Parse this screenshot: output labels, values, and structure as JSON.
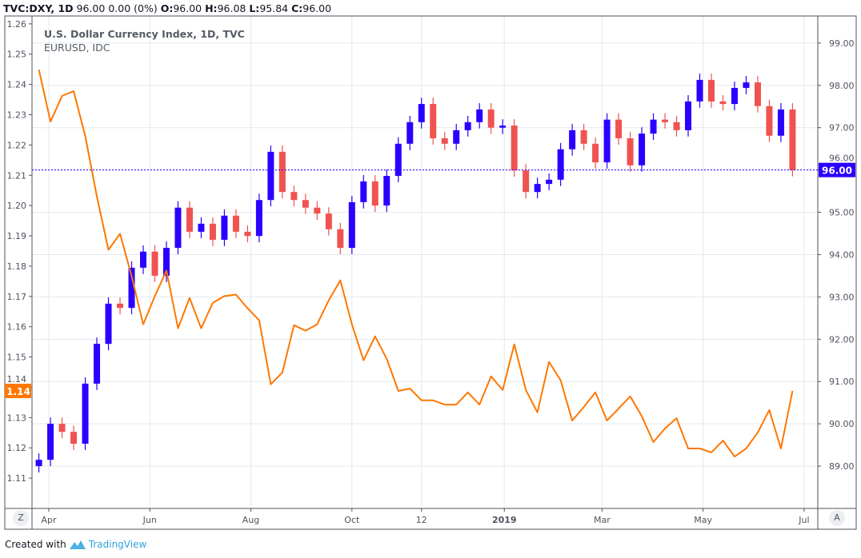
{
  "header": {
    "symbol": "TVC:DXY, 1D",
    "last": "96.00",
    "change": "0.00 (0%)",
    "o_label": "O:",
    "o": "96.00",
    "h_label": "H:",
    "h": "96.08",
    "l_label": "L:",
    "l": "95.84",
    "c_label": "C:",
    "c": "96.00"
  },
  "legend": {
    "main": "U.S. Dollar Currency Index, 1D, TVC",
    "compare": "EURUSD, IDC"
  },
  "buttons": {
    "zoom": "Z",
    "auto": "A"
  },
  "footer": {
    "created_with": "Created with",
    "brand": "TradingView"
  },
  "colors": {
    "up": "#2a00ff",
    "down": "#ef5350",
    "eurusd": "#ff7700",
    "last_price_line": "#2a00ff",
    "grid": "#e3e9ef",
    "axis": "#50535e"
  },
  "chart_data": {
    "type": "candlestick+line",
    "title": "U.S. Dollar Currency Index, 1D, TVC",
    "left_axis": {
      "ylim": [
        1.1,
        1.2626
      ],
      "ticks": [
        "1.26",
        "1.25",
        "1.24",
        "1.23",
        "1.22",
        "1.21",
        "1.20",
        "1.19",
        "1.18",
        "1.17",
        "1.16",
        "1.15",
        "1.14",
        "1.13",
        "1.12",
        "1.11"
      ]
    },
    "right_axis": {
      "ylim": [
        88.0,
        99.64
      ],
      "ticks": [
        "99.00",
        "98.00",
        "97.00",
        "96.00",
        "95.00",
        "94.00",
        "93.00",
        "92.00",
        "91.00",
        "90.00",
        "89.00"
      ]
    },
    "x_ticks": [
      {
        "label": "Apr",
        "date": "2018-04-01"
      },
      {
        "label": "Jun",
        "date": "2018-06-01"
      },
      {
        "label": "Aug",
        "date": "2018-08-01"
      },
      {
        "label": "Oct",
        "date": "2018-10-01"
      },
      {
        "label": "12",
        "date": "2018-11-12"
      },
      {
        "label": "2019",
        "date": "2019-01-01"
      },
      {
        "label": "Mar",
        "date": "2019-03-01"
      },
      {
        "label": "May",
        "date": "2019-05-01"
      },
      {
        "label": "Jul",
        "date": "2019-07-01"
      }
    ],
    "grid": true,
    "dates": [
      "2018-03-26",
      "2018-04-02",
      "2018-04-09",
      "2018-04-16",
      "2018-04-23",
      "2018-04-30",
      "2018-05-07",
      "2018-05-14",
      "2018-05-21",
      "2018-05-28",
      "2018-06-04",
      "2018-06-11",
      "2018-06-18",
      "2018-06-25",
      "2018-07-02",
      "2018-07-09",
      "2018-07-16",
      "2018-07-23",
      "2018-07-30",
      "2018-08-06",
      "2018-08-13",
      "2018-08-20",
      "2018-08-27",
      "2018-09-03",
      "2018-09-10",
      "2018-09-17",
      "2018-09-24",
      "2018-10-01",
      "2018-10-08",
      "2018-10-15",
      "2018-10-22",
      "2018-10-29",
      "2018-11-05",
      "2018-11-12",
      "2018-11-19",
      "2018-11-26",
      "2018-12-03",
      "2018-12-10",
      "2018-12-17",
      "2018-12-24",
      "2018-12-31",
      "2019-01-07",
      "2019-01-14",
      "2019-01-21",
      "2019-01-28",
      "2019-02-04",
      "2019-02-11",
      "2019-02-18",
      "2019-02-25",
      "2019-03-04",
      "2019-03-11",
      "2019-03-18",
      "2019-03-25",
      "2019-04-01",
      "2019-04-08",
      "2019-04-15",
      "2019-04-22",
      "2019-04-29",
      "2019-05-06",
      "2019-05-13",
      "2019-05-20",
      "2019-05-27",
      "2019-06-03",
      "2019-06-10",
      "2019-06-17",
      "2019-06-24"
    ],
    "series": [
      {
        "name": "U.S. Dollar Currency Index, 1D, TVC",
        "axis": "right",
        "style": "candles",
        "values": [
          89.15,
          90.0,
          89.81,
          89.53,
          90.95,
          91.89,
          92.84,
          92.74,
          93.69,
          94.07,
          93.5,
          94.16,
          95.11,
          94.54,
          94.73,
          94.35,
          94.92,
          94.54,
          94.44,
          95.29,
          96.43,
          95.48,
          95.29,
          95.11,
          94.97,
          94.6,
          94.16,
          95.24,
          95.73,
          95.16,
          95.86,
          96.62,
          97.13,
          97.56,
          96.75,
          96.62,
          96.94,
          97.13,
          97.43,
          97.0,
          97.05,
          95.99,
          95.48,
          95.67,
          95.77,
          96.49,
          96.94,
          96.62,
          96.18,
          97.19,
          96.75,
          96.11,
          96.86,
          97.19,
          97.13,
          96.94,
          97.62,
          98.13,
          97.62,
          97.56,
          97.94,
          98.07,
          97.51,
          96.81,
          97.43,
          96.0
        ],
        "last_label": "96.00"
      },
      {
        "name": "EURUSD, IDC",
        "axis": "left",
        "style": "line",
        "values": [
          1.2449,
          1.2277,
          1.2362,
          1.2378,
          1.223,
          1.2031,
          1.1854,
          1.1907,
          1.1767,
          1.1608,
          1.1701,
          1.1785,
          1.1595,
          1.1695,
          1.1595,
          1.1679,
          1.1701,
          1.1706,
          1.1661,
          1.1621,
          1.141,
          1.1449,
          1.1605,
          1.1587,
          1.1608,
          1.1687,
          1.1753,
          1.1608,
          1.1489,
          1.1568,
          1.1494,
          1.1388,
          1.1396,
          1.1357,
          1.1357,
          1.1343,
          1.1343,
          1.1383,
          1.1343,
          1.1436,
          1.1391,
          1.1542,
          1.1391,
          1.1317,
          1.1484,
          1.1423,
          1.129,
          1.1335,
          1.1383,
          1.129,
          1.133,
          1.137,
          1.1304,
          1.1219,
          1.1264,
          1.1298,
          1.1198,
          1.1198,
          1.1185,
          1.1224,
          1.1171,
          1.1198,
          1.1251,
          1.1325,
          1.1198,
          1.1388
        ],
        "last_label": "1.14"
      }
    ]
  }
}
